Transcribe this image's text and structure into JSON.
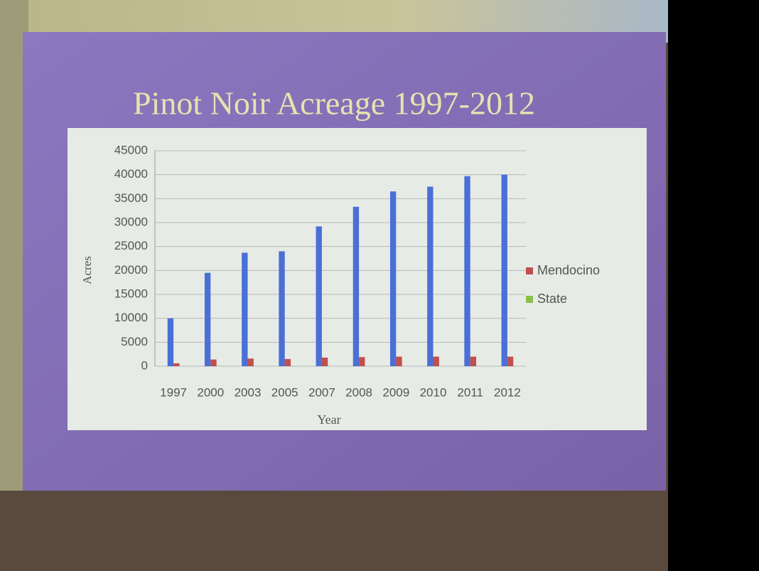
{
  "chart_data": {
    "type": "bar",
    "title": "Pinot Noir Acreage 1997-2012",
    "x_label": "Year",
    "y_label": "Acres",
    "categories": [
      "1997",
      "2000",
      "2003",
      "2005",
      "2007",
      "2008",
      "2009",
      "2010",
      "2011",
      "2012"
    ],
    "series": [
      {
        "name": "State",
        "color": "#4a6fd6",
        "legend_color": "#8cc04a",
        "values": [
          10000,
          19500,
          23700,
          24000,
          29200,
          33300,
          36500,
          37500,
          39700,
          40000
        ]
      },
      {
        "name": "Mendocino",
        "color": "#c0504d",
        "legend_color": "#c0504d",
        "values": [
          600,
          1400,
          1600,
          1500,
          1800,
          1900,
          2000,
          2000,
          2000,
          2000
        ]
      }
    ],
    "ylim": [
      0,
      45000
    ],
    "yticks": [
      0,
      5000,
      10000,
      15000,
      20000,
      25000,
      30000,
      35000,
      40000,
      45000
    ],
    "grid": true
  }
}
